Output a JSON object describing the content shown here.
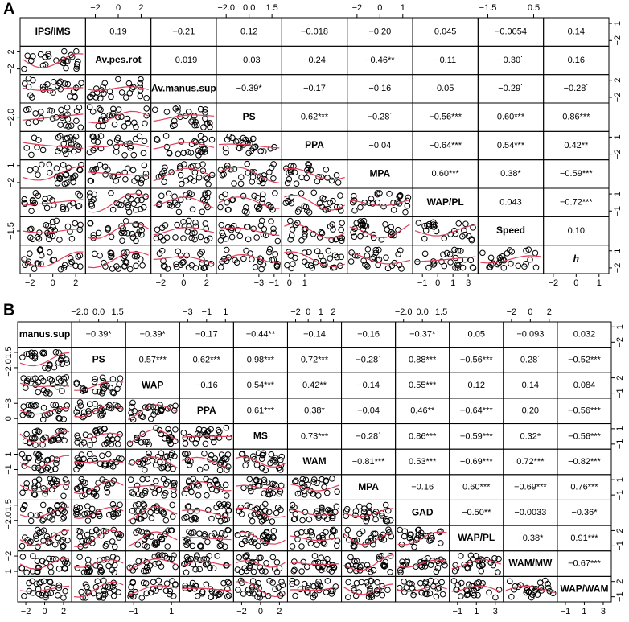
{
  "panels": [
    {
      "label": "A",
      "diagonal": [
        "IPS/IMS",
        "Av.pes.rot",
        "Av.manus.sup",
        "PS",
        "PPA",
        "MPA",
        "WAP/PL",
        "Speed",
        "h"
      ],
      "upper": [
        [
          "0.19",
          "−0.21",
          "0.12",
          "−0.018",
          "−0.20",
          "0.045",
          "−0.0054",
          "0.14"
        ],
        [
          "−0.019",
          "−0.03",
          "−0.24",
          "−0.46**",
          "−0.11",
          "−0.30˙",
          "0.16"
        ],
        [
          "−0.39*",
          "−0.17",
          "−0.16",
          "0.05",
          "−0.29˙",
          "−0.28˙"
        ],
        [
          "0.62***",
          "−0.28˙",
          "−0.56***",
          "0.60***",
          "0.86***"
        ],
        [
          "−0.04",
          "−0.64***",
          "0.54***",
          "0.42**"
        ],
        [
          "0.60***",
          "0.38*",
          "−0.59***"
        ],
        [
          "0.043",
          "−0.72***"
        ],
        [
          "0.10"
        ]
      ],
      "top_ticks": [
        [
          "−2",
          "0",
          "2"
        ],
        [
          "−2.0",
          "0.0",
          "1.5"
        ],
        [
          "−2",
          "0",
          "1"
        ],
        [
          "−1.5",
          "0.5"
        ]
      ],
      "bottom_ticks": [
        [
          "−2",
          "0",
          "2"
        ],
        [
          "−2",
          "0",
          "2"
        ],
        [
          "−3",
          "−1",
          "0",
          "1"
        ],
        [
          "−1",
          "0",
          "1",
          "3"
        ],
        [
          "−2",
          "0",
          "1"
        ]
      ],
      "left_ticks": [
        [
          "−2",
          "2"
        ],
        [
          "−2.0"
        ],
        [
          "−2",
          "1"
        ],
        [
          "−1.5"
        ]
      ],
      "right_ticks": [
        [
          "−2",
          "1"
        ],
        [
          "−2",
          "2"
        ],
        [
          "−2",
          "1"
        ],
        [
          "−1",
          "1"
        ],
        [
          "−2",
          "1"
        ]
      ]
    },
    {
      "label": "B",
      "diagonal": [
        "manus.sup",
        "PS",
        "WAP",
        "PPA",
        "MS",
        "WAM",
        "MPA",
        "GAD",
        "WAP/PL",
        "WAM/MW",
        "WAP/WAM"
      ],
      "upper": [
        [
          "−0.39*",
          "−0.39*",
          "−0.17",
          "−0.44**",
          "−0.14",
          "−0.16",
          "−0.37*",
          "0.05",
          "−0.093",
          "0.032"
        ],
        [
          "0.57***",
          "0.62***",
          "0.98***",
          "0.72***",
          "−0.28˙",
          "0.88***",
          "−0.56***",
          "0.28˙",
          "−0.52***"
        ],
        [
          "−0.16",
          "0.54***",
          "0.42**",
          "−0.14",
          "0.55***",
          "0.12",
          "0.14",
          "0.084"
        ],
        [
          "0.61***",
          "0.38*",
          "−0.04",
          "0.46**",
          "−0.64***",
          "0.20",
          "−0.56***"
        ],
        [
          "0.73***",
          "−0.28˙",
          "0.86***",
          "−0.59***",
          "0.32*",
          "−0.56***"
        ],
        [
          "−0.81***",
          "0.53***",
          "−0.69***",
          "0.72***",
          "−0.82***"
        ],
        [
          "−0.16",
          "0.60***",
          "−0.69***",
          "0.76***"
        ],
        [
          "−0.50**",
          "−0.0033",
          "−0.36*"
        ],
        [
          "−0.38*",
          "0.91***"
        ],
        [
          "−0.67***"
        ]
      ],
      "top_ticks": [
        [
          "−2.0",
          "0.0",
          "1.5"
        ],
        [
          "−3",
          "−1",
          "1"
        ],
        [
          "−2",
          "0",
          "1",
          "2"
        ],
        [
          "−2.0",
          "0.0",
          "1.5"
        ],
        [
          "−2",
          "0",
          "2"
        ]
      ],
      "bottom_ticks": [
        [
          "−2",
          "0",
          "2"
        ],
        [
          "−1",
          "1"
        ],
        [
          "−2",
          "0",
          "2"
        ],
        [
          "−1",
          "1",
          "3"
        ],
        [
          "−1",
          "1",
          "3"
        ]
      ],
      "left_ticks": [
        [
          "−2.0",
          "1.5"
        ],
        [
          "0",
          "−3"
        ],
        [
          "−1",
          "1"
        ],
        [
          "−2.0",
          "1.5"
        ],
        [
          "1",
          "−2"
        ]
      ],
      "right_ticks": [
        [
          "−2",
          "1"
        ],
        [
          "−1",
          "2"
        ],
        [
          "−1",
          "1"
        ],
        [
          "−1",
          "1"
        ],
        [
          "−1",
          "2"
        ],
        [
          "−1",
          "2"
        ]
      ]
    }
  ]
}
